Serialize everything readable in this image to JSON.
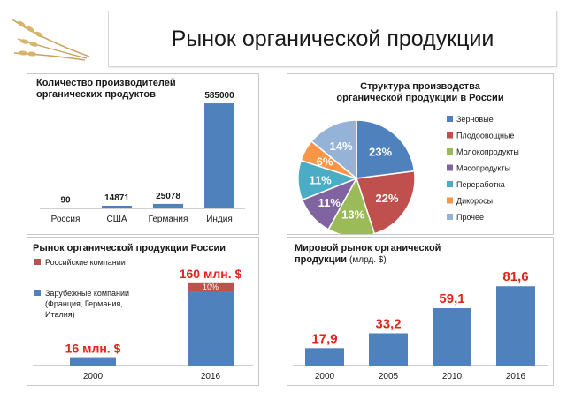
{
  "page_title": "Рынок органической продукции",
  "colors": {
    "bar": "#4f81bd",
    "red": "#c0504d",
    "value_red": "#e2231a"
  },
  "chart_data": [
    {
      "type": "bar",
      "title": "Количество производителей органических продуктов",
      "categories": [
        "Россия",
        "США",
        "Германия",
        "Индия"
      ],
      "values": [
        90,
        14871,
        25078,
        585000
      ],
      "data_labels": [
        "90",
        "14871",
        "25078",
        "585000"
      ],
      "ylim": [
        0,
        600000
      ]
    },
    {
      "type": "pie",
      "title": "Структура производства органической продукции в России",
      "labels": [
        "Зерновые",
        "Плодоовощные",
        "Молокопродукты",
        "Мясопродукты",
        "Переработка",
        "Дикоросы",
        "Прочее"
      ],
      "values": [
        23,
        22,
        13,
        11,
        11,
        6,
        14
      ],
      "data_labels": [
        "23%",
        "22%",
        "13%",
        "11%",
        "11%",
        "6%",
        "14%"
      ],
      "colors": [
        "#4f81bd",
        "#c0504d",
        "#9bbb59",
        "#8064a2",
        "#4bacc6",
        "#f79646",
        "#95b3d7"
      ],
      "legend": "right"
    },
    {
      "type": "bar",
      "title": "Рынок органической продукции России",
      "categories": [
        "2000",
        "2016"
      ],
      "series": [
        {
          "name": "Российские компании",
          "values": [
            0,
            16
          ]
        },
        {
          "name": "Зарубежные компании (Франция, Германия, Италия)",
          "values": [
            16,
            144
          ]
        }
      ],
      "totals_labels": [
        "16 млн. $",
        "160 млн. $"
      ],
      "segment_label": "10%",
      "ylim": [
        0,
        175
      ]
    },
    {
      "type": "bar",
      "title": "Мировой рынок органической продукции",
      "title_unit": "(млрд. $)",
      "categories": [
        "2000",
        "2005",
        "2010",
        "2016"
      ],
      "values": [
        17.9,
        33.2,
        59.1,
        81.6
      ],
      "data_labels": [
        "17,9",
        "33,2",
        "59,1",
        "81,6"
      ],
      "ylim": [
        0,
        90
      ]
    }
  ]
}
